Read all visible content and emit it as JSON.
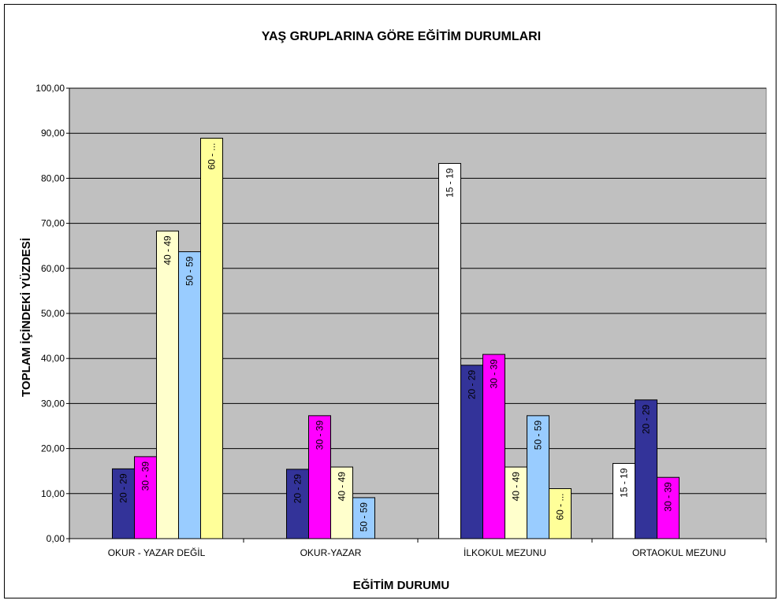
{
  "chart_data": {
    "type": "bar",
    "title": "YAŞ GRUPLARINA GÖRE EĞİTİM DURUMLARI",
    "xlabel": "EĞİTİM DURUMU",
    "ylabel": "TOPLAM İÇİNDEKİ YÜZDESİ",
    "ylim": [
      0,
      100
    ],
    "yticks": [
      "0,00",
      "10,00",
      "20,00",
      "30,00",
      "40,00",
      "50,00",
      "60,00",
      "70,00",
      "80,00",
      "90,00",
      "100,00"
    ],
    "grid": true,
    "colors": {
      "plot_bg": "#c0c0c0",
      "15 - 19": "#ffffff",
      "20 - 29": "#333399",
      "30 - 39": "#ff00ff",
      "40 - 49": "#ffffcc",
      "50 - 59": "#99ccff",
      "60 - ...": "#ffff99"
    },
    "categories": [
      {
        "label": "OKUR - YAZAR DEĞİL",
        "bars": [
          {
            "group": "20 - 29",
            "value": 15.5,
            "label": "20 - 29"
          },
          {
            "group": "30 - 39",
            "value": 18.2,
            "label": "30 - 39"
          },
          {
            "group": "40 - 49",
            "value": 68.3,
            "label": "40 - 49"
          },
          {
            "group": "50 - 59",
            "value": 63.7,
            "label": "50 - 59"
          },
          {
            "group": "60 - ...",
            "value": 88.9,
            "label": "60 - ..."
          }
        ]
      },
      {
        "label": "OKUR-YAZAR",
        "bars": [
          {
            "group": "20 - 29",
            "value": 15.4,
            "label": "20 - 29"
          },
          {
            "group": "30 - 39",
            "value": 27.3,
            "label": "30 - 39"
          },
          {
            "group": "40 - 49",
            "value": 15.9,
            "label": "40 - 49"
          },
          {
            "group": "50 - 59",
            "value": 9.1,
            "label": "50 - 59"
          }
        ]
      },
      {
        "label": "İLKOKUL MEZUNU",
        "bars": [
          {
            "group": "15 - 19",
            "value": 83.3,
            "label": "15 - 19"
          },
          {
            "group": "20 - 29",
            "value": 38.5,
            "label": "20 - 29"
          },
          {
            "group": "30 - 39",
            "value": 40.9,
            "label": "30 - 39"
          },
          {
            "group": "40 - 49",
            "value": 15.9,
            "label": "40 - 49"
          },
          {
            "group": "50 - 59",
            "value": 27.3,
            "label": "50 - 59"
          },
          {
            "group": "60 - ...",
            "value": 11.1,
            "label": "60 - ..."
          }
        ]
      },
      {
        "label": "ORTAOKUL MEZUNU",
        "bars": [
          {
            "group": "15 - 19",
            "value": 16.7,
            "label": "15 - 19"
          },
          {
            "group": "20 - 29",
            "value": 30.8,
            "label": "20 - 29"
          },
          {
            "group": "30 - 39",
            "value": 13.6,
            "label": "30 - 39"
          }
        ]
      }
    ]
  }
}
